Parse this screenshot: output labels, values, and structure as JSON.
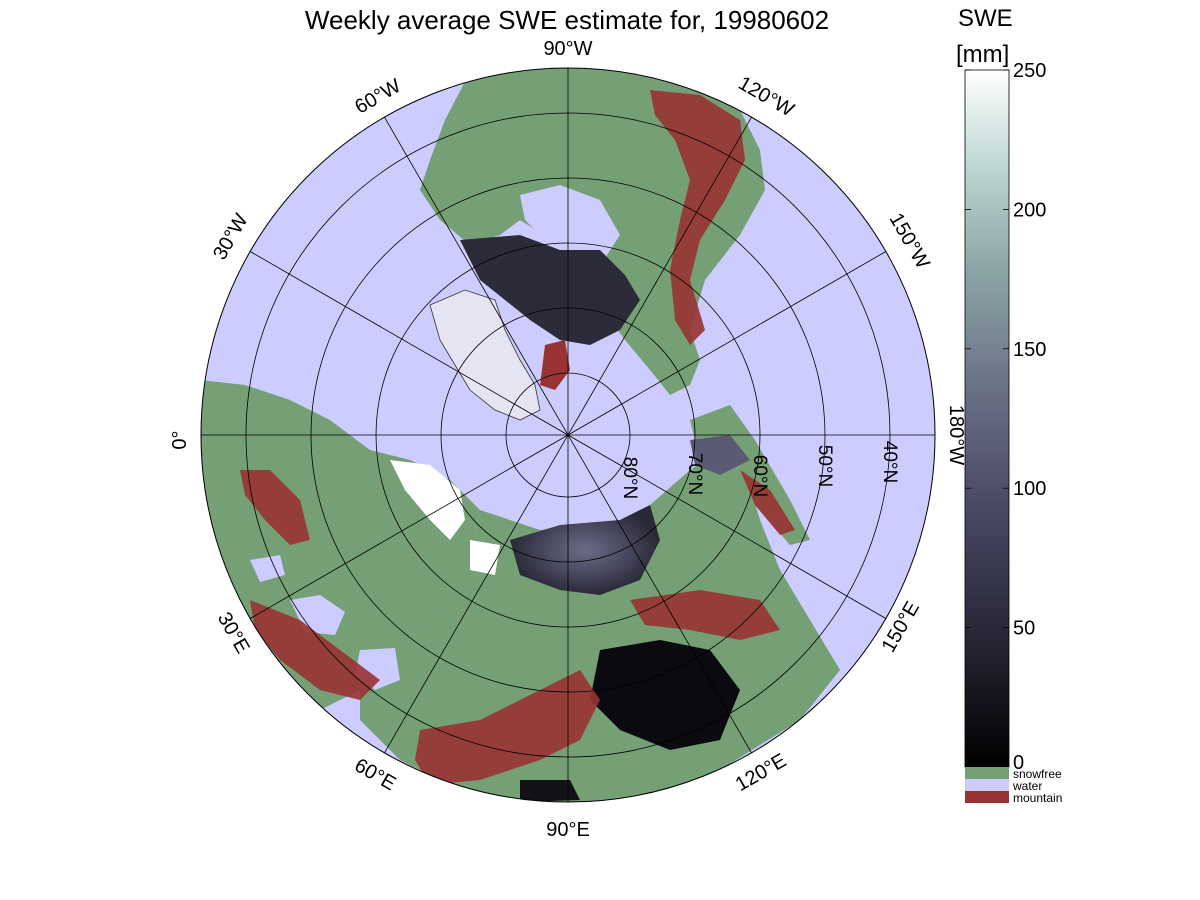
{
  "title": "Weekly average SWE estimate for, 19980602",
  "colorbar": {
    "title_line1": "SWE",
    "title_line2": "[mm]",
    "ticks": [
      "0",
      "50",
      "100",
      "150",
      "200",
      "250"
    ],
    "range": [
      0,
      250
    ],
    "gradient_stops": [
      "#000000",
      "#262534",
      "#4b4a66",
      "#6b7386",
      "#8ea7a8",
      "#bcd6d2",
      "#ffffff"
    ],
    "categories": [
      {
        "label": "snowfree",
        "color": "#759f74"
      },
      {
        "label": "water",
        "color": "#ccccff"
      },
      {
        "label": "mountain",
        "color": "#993333"
      }
    ]
  },
  "map": {
    "ocean_color": "#ccccff",
    "land_color": "#759f74",
    "mountain_color": "#993333",
    "snow_dark_color": "#1f1e2a",
    "snow_mid_color": "#4a4960",
    "ice_color": "#e4e4f2",
    "longitude_labels": {
      "top": "90°W",
      "bottom": "90°E",
      "left": "0°",
      "right": "180°W",
      "w60": "60°W",
      "w30": "30°W",
      "w120": "120°W",
      "w150": "150°W",
      "e30": "30°E",
      "e60": "60°E",
      "e120": "120°E",
      "e150": "150°E"
    },
    "latitude_labels": [
      "80°N",
      "70°N",
      "60°N",
      "50°N",
      "40°N"
    ]
  }
}
